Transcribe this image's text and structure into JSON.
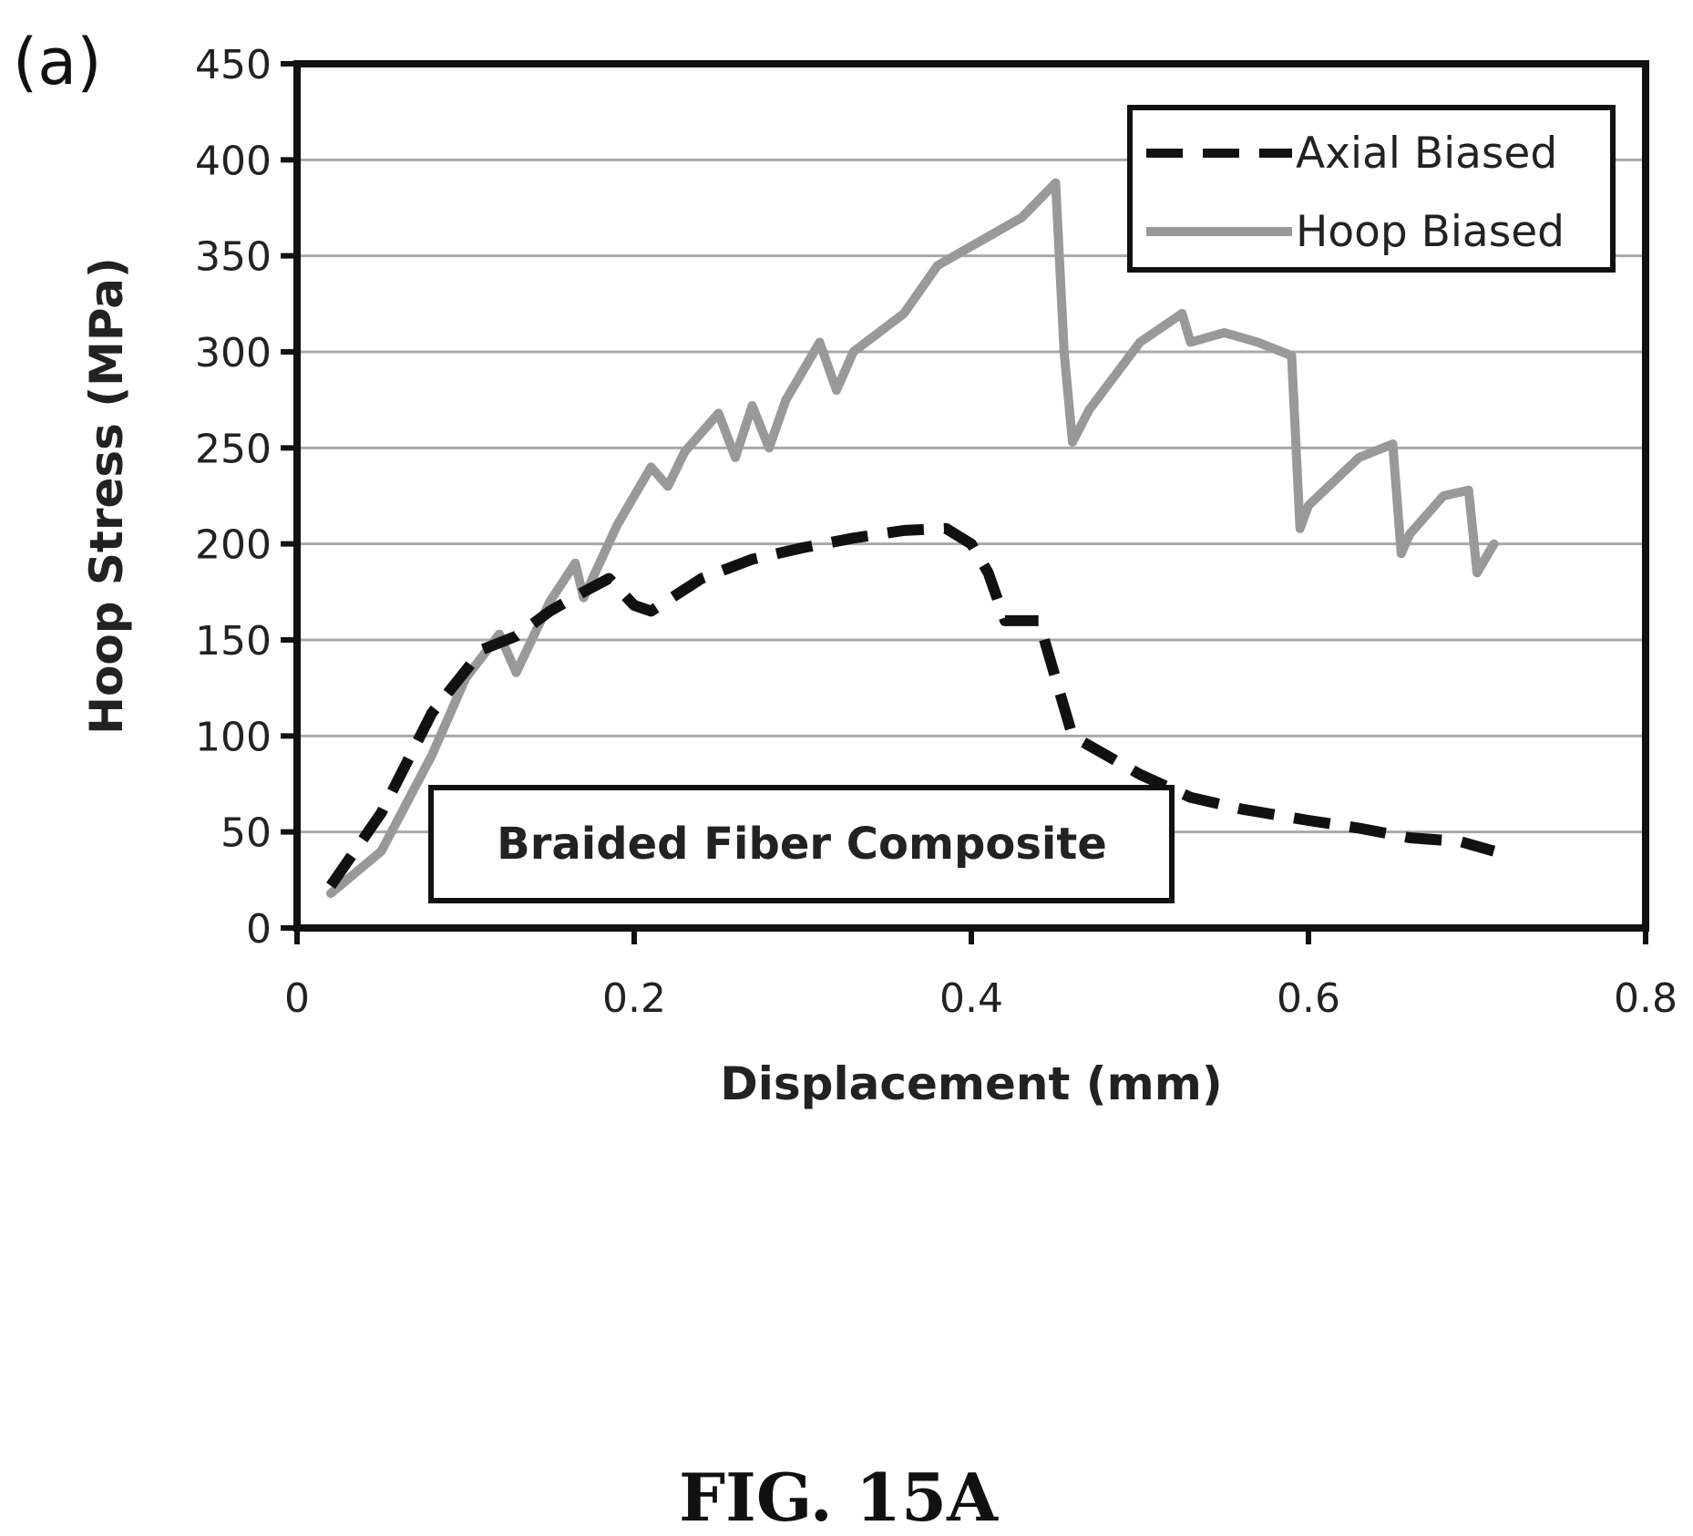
{
  "panel_label": "(a)",
  "figure_caption": "FIG. 15A",
  "chart_data": {
    "type": "line",
    "title": "",
    "xlabel": "Displacement (mm)",
    "ylabel": "Hoop Stress (MPa)",
    "xlim": [
      0,
      0.8
    ],
    "ylim": [
      0,
      450
    ],
    "xticks": [
      0,
      0.2,
      0.4,
      0.6,
      0.8
    ],
    "xtick_labels": [
      "0",
      "0.2",
      "0.4",
      "0.6",
      "0.8"
    ],
    "yticks": [
      0,
      50,
      100,
      150,
      200,
      250,
      300,
      350,
      400,
      450
    ],
    "ytick_labels": [
      "0",
      "50",
      "100",
      "150",
      "200",
      "250",
      "300",
      "350",
      "400",
      "450"
    ],
    "grid": "horizontal",
    "legend_position": "top-right",
    "annotation": "Braided Fiber Composite",
    "series": [
      {
        "name": "Axial Biased",
        "style": "dashed",
        "color": "#111111",
        "x": [
          0.02,
          0.05,
          0.08,
          0.11,
          0.13,
          0.15,
          0.17,
          0.185,
          0.2,
          0.21,
          0.24,
          0.27,
          0.3,
          0.33,
          0.36,
          0.385,
          0.4,
          0.41,
          0.42,
          0.44,
          0.45,
          0.46,
          0.47,
          0.5,
          0.53,
          0.56,
          0.6,
          0.63,
          0.66,
          0.69,
          0.71
        ],
        "y": [
          22,
          60,
          112,
          145,
          152,
          165,
          175,
          182,
          168,
          165,
          182,
          192,
          198,
          203,
          207,
          208,
          200,
          185,
          160,
          160,
          130,
          100,
          95,
          80,
          68,
          62,
          56,
          52,
          47,
          45,
          40
        ]
      },
      {
        "name": "Hoop Biased",
        "style": "solid",
        "color": "#999999",
        "x": [
          0.02,
          0.05,
          0.08,
          0.1,
          0.12,
          0.13,
          0.15,
          0.165,
          0.17,
          0.19,
          0.21,
          0.22,
          0.23,
          0.25,
          0.26,
          0.27,
          0.28,
          0.29,
          0.31,
          0.32,
          0.33,
          0.36,
          0.38,
          0.41,
          0.43,
          0.45,
          0.455,
          0.46,
          0.47,
          0.5,
          0.525,
          0.53,
          0.55,
          0.57,
          0.59,
          0.595,
          0.6,
          0.63,
          0.65,
          0.655,
          0.66,
          0.68,
          0.695,
          0.7,
          0.71
        ],
        "y": [
          18,
          40,
          90,
          130,
          153,
          133,
          170,
          190,
          172,
          210,
          240,
          230,
          248,
          268,
          245,
          272,
          250,
          275,
          305,
          280,
          300,
          320,
          345,
          360,
          370,
          388,
          300,
          253,
          270,
          305,
          320,
          305,
          310,
          305,
          298,
          208,
          220,
          245,
          252,
          195,
          205,
          225,
          228,
          185,
          200
        ]
      }
    ]
  }
}
